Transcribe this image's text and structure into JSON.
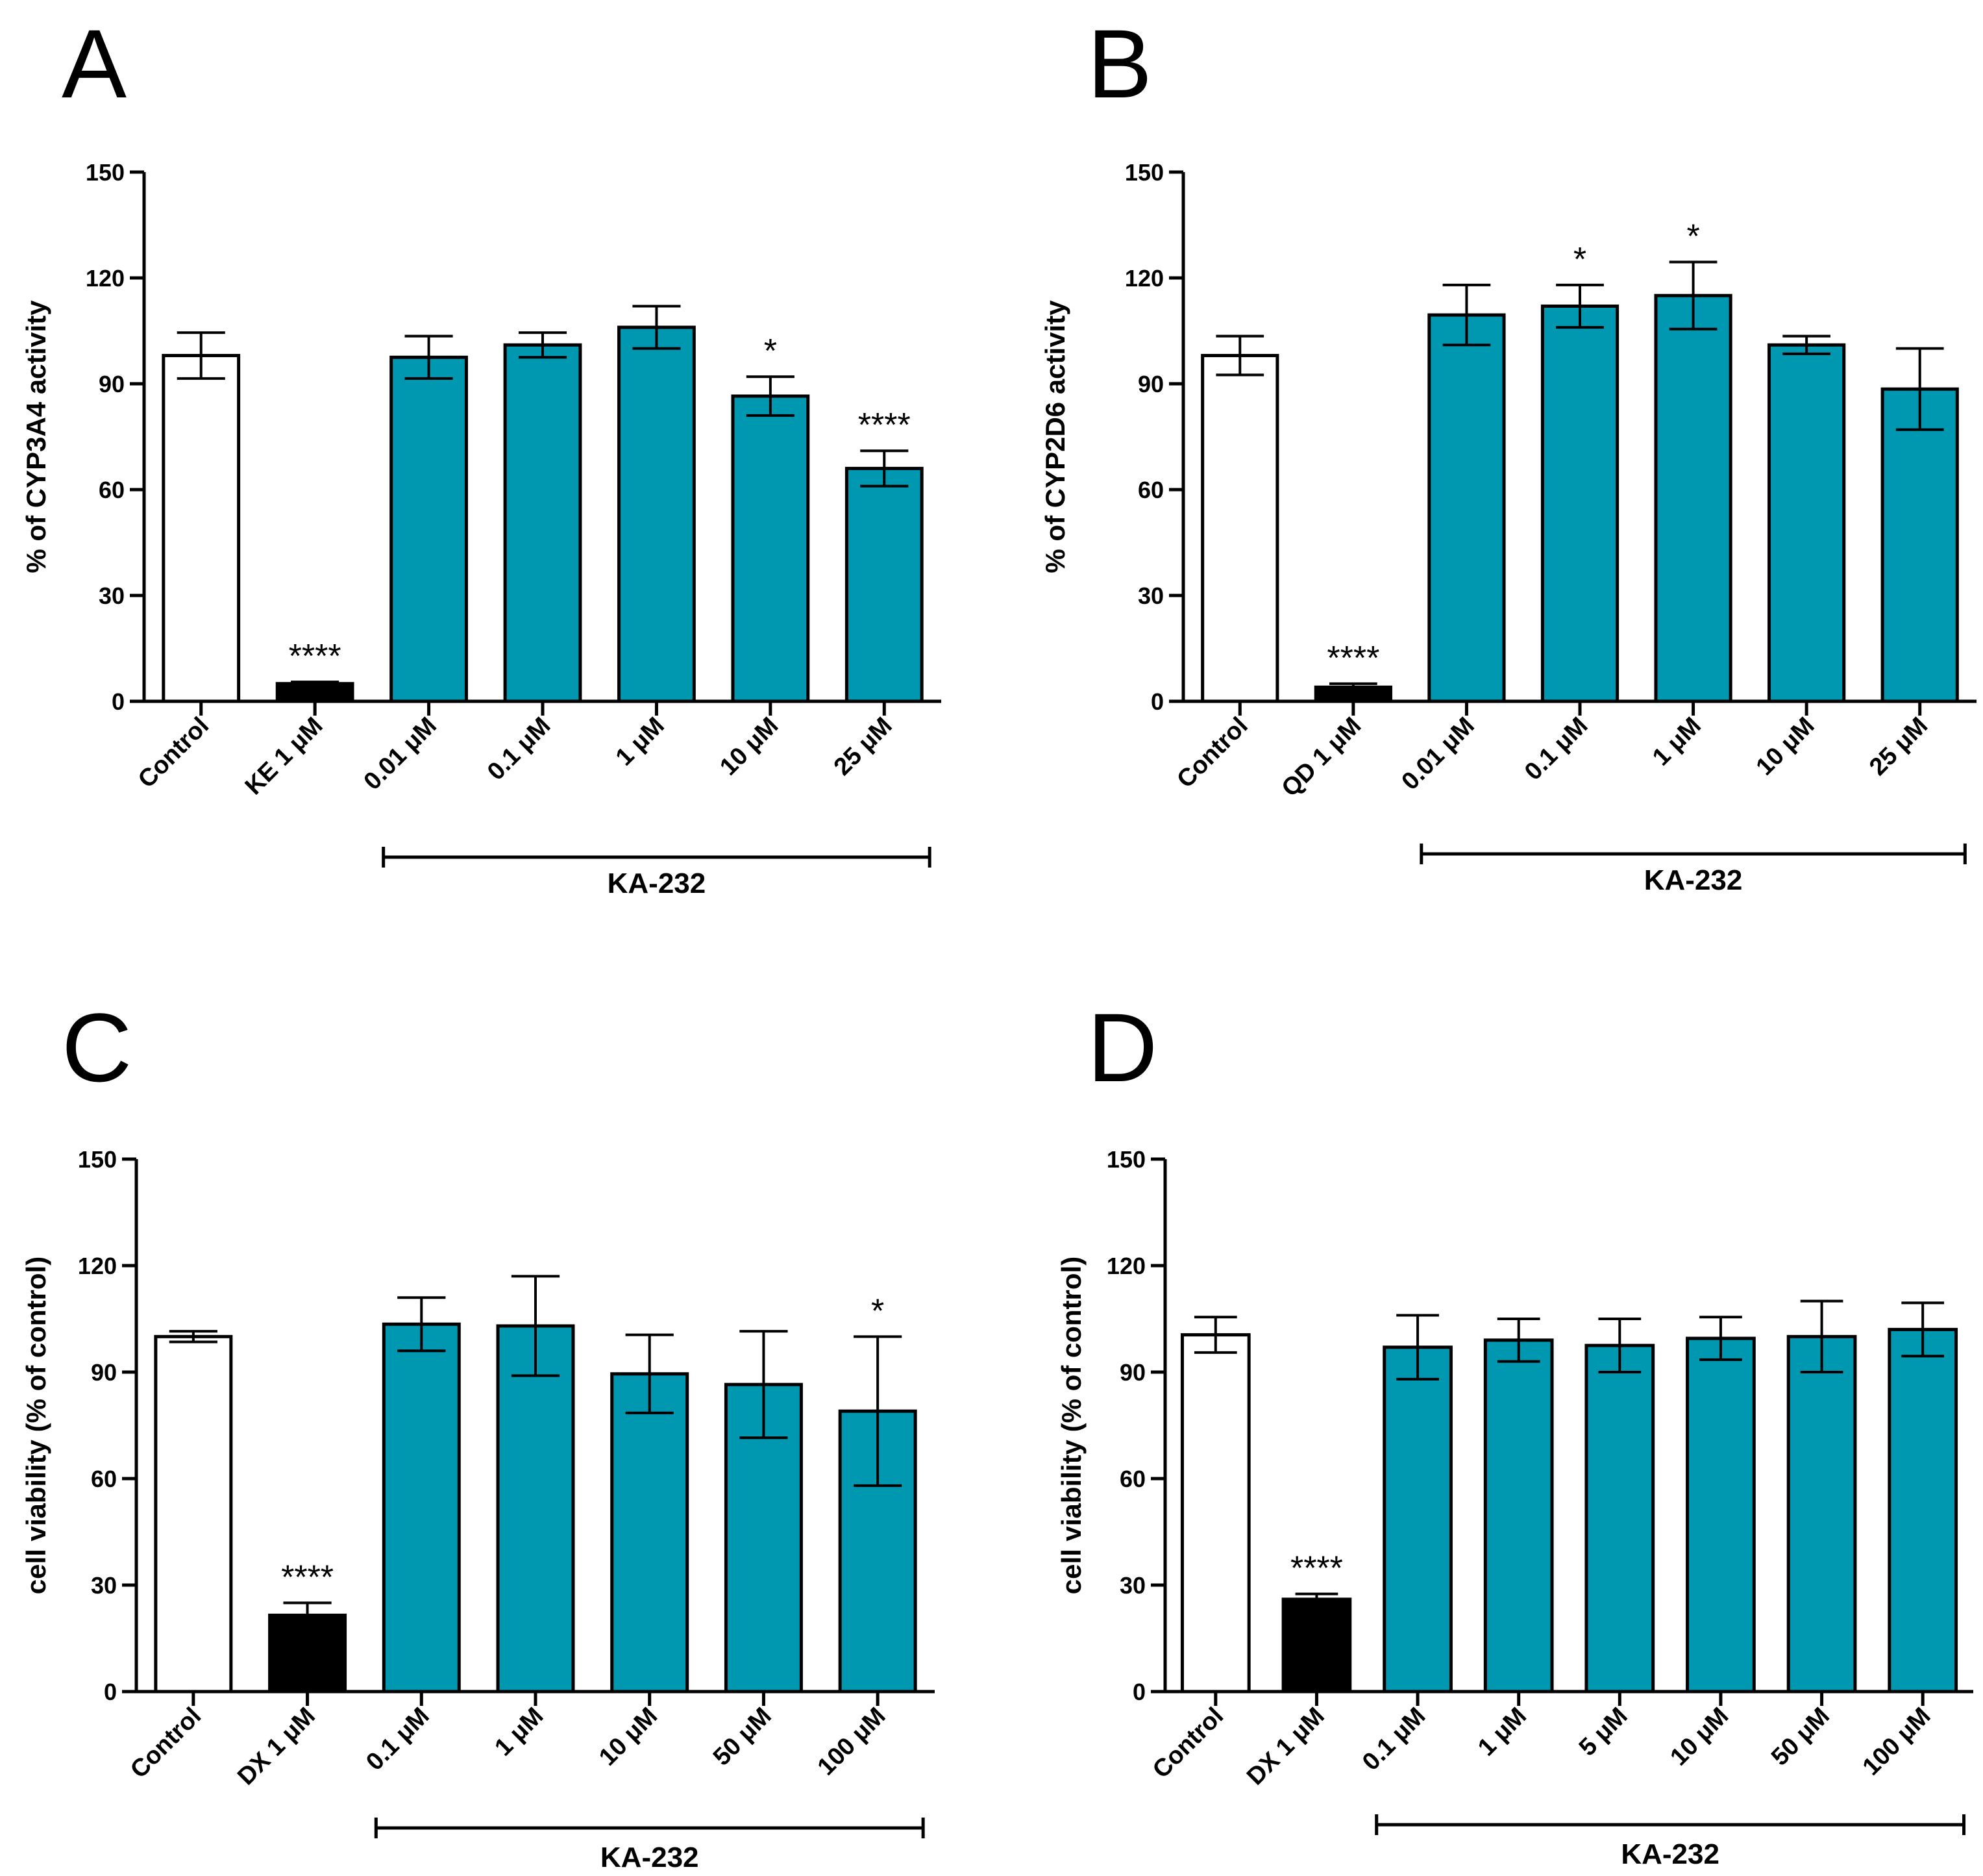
{
  "colors": {
    "teal": "#0097b0",
    "black": "#000000",
    "white": "#ffffff"
  },
  "chart_data": [
    {
      "panel": "A",
      "type": "bar",
      "ylabel": "% of CYP3A4 activity",
      "ylim": [
        0,
        150
      ],
      "yticks": [
        0,
        30,
        60,
        90,
        120,
        150
      ],
      "categories": [
        "Control",
        "KE 1 μM",
        "0.01 μM",
        "0.1 μM",
        "1 μM",
        "10 μM",
        "25 μM"
      ],
      "values": [
        98,
        5,
        97.5,
        101,
        106,
        86.5,
        66
      ],
      "errors": [
        6.5,
        0.5,
        6,
        3.5,
        6,
        5.5,
        5
      ],
      "fills": [
        "white",
        "black",
        "teal",
        "teal",
        "teal",
        "teal",
        "teal"
      ],
      "significance": [
        "",
        "****",
        "",
        "",
        "",
        "*",
        "****"
      ],
      "group_label": "KA-232",
      "group_span": [
        2,
        6
      ]
    },
    {
      "panel": "B",
      "type": "bar",
      "ylabel": "% of CYP2D6 activity",
      "ylim": [
        0,
        150
      ],
      "yticks": [
        0,
        30,
        60,
        90,
        120,
        150
      ],
      "categories": [
        "Control",
        "QD 1 μM",
        "0.01 μM",
        "0.1 μM",
        "1 μM",
        "10 μM",
        "25 μM"
      ],
      "values": [
        98,
        4,
        109.5,
        112,
        115,
        101,
        88.5
      ],
      "errors": [
        5.5,
        1,
        8.5,
        6,
        9.5,
        2.5,
        11.5
      ],
      "fills": [
        "white",
        "black",
        "teal",
        "teal",
        "teal",
        "teal",
        "teal"
      ],
      "significance": [
        "",
        "****",
        "",
        "*",
        "*",
        "",
        ""
      ],
      "group_label": "KA-232",
      "group_span": [
        2,
        6
      ]
    },
    {
      "panel": "C",
      "type": "bar",
      "ylabel": "cell viability (% of control)",
      "ylim": [
        0,
        150
      ],
      "yticks": [
        0,
        30,
        60,
        90,
        120,
        150
      ],
      "categories": [
        "Control",
        "DX 1 μM",
        "0.1 μM",
        "1 μM",
        "10 μM",
        "50 μM",
        "100 μM"
      ],
      "values": [
        100,
        21.5,
        103.5,
        103,
        89.5,
        86.5,
        79
      ],
      "errors": [
        1.5,
        3.5,
        7.5,
        14,
        11,
        15,
        21
      ],
      "fills": [
        "white",
        "black",
        "teal",
        "teal",
        "teal",
        "teal",
        "teal"
      ],
      "significance": [
        "",
        "****",
        "",
        "",
        "",
        "",
        "*"
      ],
      "group_label": "KA-232",
      "group_span": [
        2,
        6
      ]
    },
    {
      "panel": "D",
      "type": "bar",
      "ylabel": "cell viability (% of control)",
      "ylim": [
        0,
        150
      ],
      "yticks": [
        0,
        30,
        60,
        90,
        120,
        150
      ],
      "categories": [
        "Control",
        "DX 1 μM",
        "0.1 μM",
        "1 μM",
        "5 μM",
        "10 μM",
        "50 μM",
        "100 μM"
      ],
      "values": [
        100.5,
        26,
        97,
        99,
        97.5,
        99.5,
        100,
        102
      ],
      "errors": [
        5,
        1.5,
        9,
        6,
        7.5,
        6,
        10,
        7.5
      ],
      "fills": [
        "white",
        "black",
        "teal",
        "teal",
        "teal",
        "teal",
        "teal",
        "teal"
      ],
      "significance": [
        "",
        "****",
        "",
        "",
        "",
        "",
        "",
        ""
      ],
      "group_label": "KA-232",
      "group_span": [
        2,
        7
      ]
    }
  ]
}
